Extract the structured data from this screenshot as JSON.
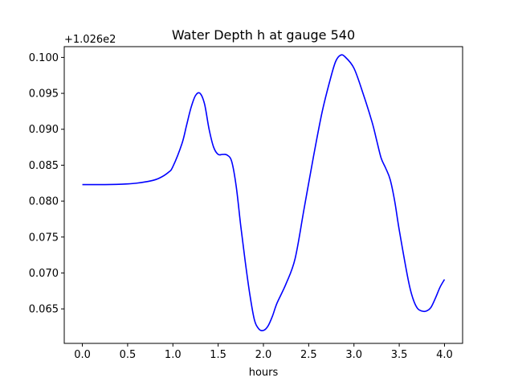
{
  "chart_data": {
    "type": "line",
    "title": "Water Depth h at gauge 540",
    "xlabel": "hours",
    "ylabel": "",
    "y_offset_label": "+1.026e2",
    "y_offset": 102.6,
    "xlim": [
      -0.2,
      4.2
    ],
    "ylim": [
      0.0602,
      0.1015
    ],
    "x_ticks": [
      0.0,
      0.5,
      1.0,
      1.5,
      2.0,
      2.5,
      3.0,
      3.5,
      4.0
    ],
    "x_tick_labels": [
      "0.0",
      "0.5",
      "1.0",
      "1.5",
      "2.0",
      "2.5",
      "3.0",
      "3.5",
      "4.0"
    ],
    "y_ticks": [
      0.065,
      0.07,
      0.075,
      0.08,
      0.085,
      0.09,
      0.095,
      0.1
    ],
    "y_tick_labels": [
      "0.065",
      "0.070",
      "0.075",
      "0.080",
      "0.085",
      "0.090",
      "0.095",
      "0.100"
    ],
    "grid": false,
    "legend": "none",
    "series": [
      {
        "color": "#0000ff",
        "x": [
          0.0,
          0.25,
          0.5,
          0.6,
          0.75,
          0.85,
          0.95,
          1.0,
          1.1,
          1.15,
          1.2,
          1.25,
          1.3,
          1.35,
          1.4,
          1.45,
          1.5,
          1.55,
          1.6,
          1.65,
          1.7,
          1.75,
          1.8,
          1.85,
          1.9,
          1.95,
          2.0,
          2.05,
          2.1,
          2.15,
          2.25,
          2.35,
          2.45,
          2.55,
          2.65,
          2.75,
          2.8,
          2.85,
          2.9,
          3.0,
          3.1,
          3.2,
          3.25,
          3.3,
          3.35,
          3.4,
          3.45,
          3.5,
          3.6,
          3.65,
          3.7,
          3.75,
          3.8,
          3.85,
          3.9,
          3.95,
          4.0
        ],
        "y": [
          0.0823,
          0.0823,
          0.0824,
          0.0825,
          0.0828,
          0.0832,
          0.084,
          0.0848,
          0.088,
          0.0905,
          0.093,
          0.0947,
          0.095,
          0.0935,
          0.09,
          0.0875,
          0.0865,
          0.0865,
          0.0864,
          0.0855,
          0.082,
          0.0765,
          0.0715,
          0.067,
          0.0635,
          0.0622,
          0.062,
          0.0626,
          0.064,
          0.0658,
          0.0685,
          0.072,
          0.079,
          0.086,
          0.0925,
          0.0975,
          0.0995,
          0.1003,
          0.1001,
          0.0985,
          0.095,
          0.091,
          0.0885,
          0.086,
          0.0846,
          0.083,
          0.08,
          0.076,
          0.069,
          0.0665,
          0.0651,
          0.0647,
          0.0647,
          0.0652,
          0.0665,
          0.068,
          0.0691
        ]
      }
    ]
  }
}
